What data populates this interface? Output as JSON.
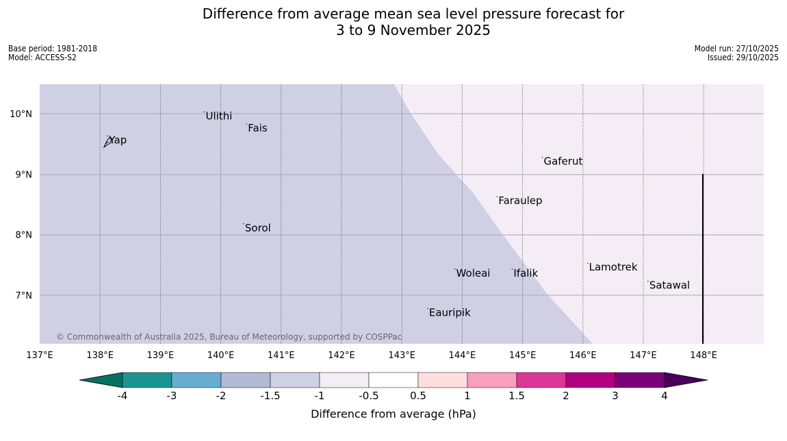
{
  "title": "Difference from average mean sea level pressure forecast for\n3 to 9 November 2025",
  "meta_left": {
    "base_period": "Base period: 1981-2018",
    "model": "Model: ACCESS-S2"
  },
  "meta_right": {
    "model_run": "Model run: 27/10/2025",
    "issued": "Issued: 29/10/2025"
  },
  "copyright": "© Commonwealth of Australia 2025, Bureau of Meteorology, supported by COSPPac",
  "map": {
    "lon_range": [
      137,
      149
    ],
    "lat_range": [
      6.2,
      10.5
    ],
    "lon_ticks": [
      "137°E",
      "138°E",
      "139°E",
      "140°E",
      "141°E",
      "142°E",
      "143°E",
      "144°E",
      "145°E",
      "146°E",
      "147°E",
      "148°E"
    ],
    "lat_ticks": [
      "7°N",
      "8°N",
      "9°N",
      "10°N"
    ],
    "colors": {
      "negative_1_5_to_1": "#cfd0e4",
      "negative_1_to_0_5": "#f4edf5"
    },
    "places": [
      {
        "name": "Yap",
        "lon": 138.15,
        "lat": 9.55
      },
      {
        "name": "Ulithi",
        "lon": 139.75,
        "lat": 9.95
      },
      {
        "name": "Fais",
        "lon": 140.45,
        "lat": 9.75
      },
      {
        "name": "Gaferut",
        "lon": 145.35,
        "lat": 9.2
      },
      {
        "name": "Faraulep",
        "lon": 144.6,
        "lat": 8.55
      },
      {
        "name": "Sorol",
        "lon": 140.4,
        "lat": 8.1
      },
      {
        "name": "Lamotrek",
        "lon": 146.1,
        "lat": 7.45
      },
      {
        "name": "Woleai",
        "lon": 143.9,
        "lat": 7.35
      },
      {
        "name": "Ifalik",
        "lon": 144.85,
        "lat": 7.35
      },
      {
        "name": "Satawal",
        "lon": 147.1,
        "lat": 7.15
      },
      {
        "name": "Eauripik",
        "lon": 143.45,
        "lat": 6.7
      }
    ]
  },
  "colorbar": {
    "label": "Difference from average (hPa)",
    "ticks": [
      "-4",
      "-3",
      "-2",
      "-1.5",
      "-1",
      "-0.5",
      "0.5",
      "1",
      "1.5",
      "2",
      "3",
      "4"
    ],
    "colors": [
      "#1a9393",
      "#68aed2",
      "#b1bbd4",
      "#cfd0e4",
      "#f4edf5",
      "#ffffff",
      "#ffdede",
      "#f89fbd",
      "#de3598",
      "#b2007f",
      "#7b0179"
    ],
    "under_color": "#05725f",
    "over_color": "#4a005a"
  }
}
